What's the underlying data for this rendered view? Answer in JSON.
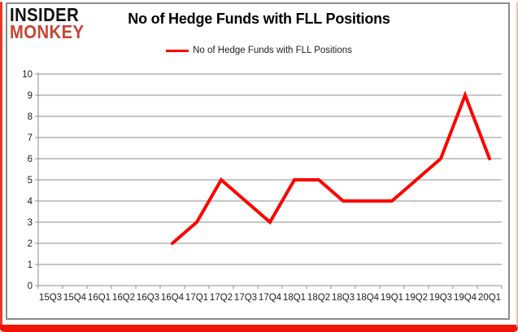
{
  "logo": {
    "line1": "INSIDER",
    "line2": "MONKEY"
  },
  "header": {
    "title": "No of Hedge Funds with FLL Positions"
  },
  "legend": {
    "label": "No of Hedge Funds with FLL Positions"
  },
  "colors": {
    "series_line": "#ff0000",
    "logo_accent": "#c64534",
    "gridline": "#8c8c8c",
    "axis": "#8c8c8c",
    "panel_frame": "#8b8b8b",
    "page_border": "#ee1506",
    "tick_label": "#1c1c1c"
  },
  "chart_data": {
    "type": "line",
    "title": "No of Hedge Funds with FLL Positions",
    "legend_entries": [
      "No of Hedge Funds with FLL Positions"
    ],
    "legend_position": "top",
    "grid": "horizontal",
    "categories": [
      "15Q3",
      "15Q4",
      "16Q1",
      "16Q2",
      "16Q3",
      "16Q4",
      "17Q1",
      "17Q2",
      "17Q3",
      "17Q4",
      "18Q1",
      "18Q2",
      "18Q3",
      "18Q4",
      "19Q1",
      "19Q2",
      "19Q3",
      "19Q4",
      "20Q1"
    ],
    "series": [
      {
        "name": "No of Hedge Funds with FLL Positions",
        "color": "#ff0000",
        "values": [
          null,
          null,
          null,
          null,
          null,
          2,
          3,
          5,
          4,
          3,
          5,
          5,
          4,
          4,
          4,
          5,
          6,
          9,
          6
        ]
      }
    ],
    "ylim": [
      0,
      10
    ],
    "ystep": 1,
    "xlabel": "",
    "ylabel": ""
  }
}
